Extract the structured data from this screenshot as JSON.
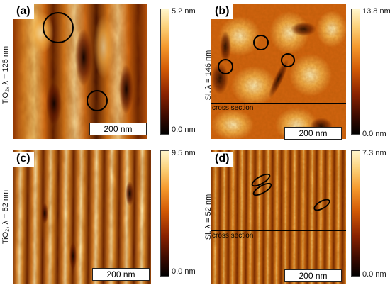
{
  "panels": [
    {
      "id": "a",
      "label": "(a)",
      "ylabel": "TiO₂, λ = 125 nm",
      "scalebar": "200 nm",
      "cbar_max": "5.2 nm",
      "cbar_min": "0.0 nm",
      "cross_section": ""
    },
    {
      "id": "b",
      "label": "(b)",
      "ylabel": "Si, λ = 146 nm",
      "scalebar": "200 nm",
      "cbar_max": "13.8 nm",
      "cbar_min": "0.0 nm",
      "cross_section": "cross section"
    },
    {
      "id": "c",
      "label": "(c)",
      "ylabel": "TiO₂, λ = 52 nm",
      "scalebar": "200 nm",
      "cbar_max": "9.5 nm",
      "cbar_min": "0.0 nm",
      "cross_section": ""
    },
    {
      "id": "d",
      "label": "(d)",
      "ylabel": "Si, λ = 52 nm",
      "scalebar": "200 nm",
      "cbar_max": "7.3 nm",
      "cbar_min": "0.0 nm",
      "cross_section": "cross section"
    }
  ],
  "colors": {
    "afm_dark": "#1a0500",
    "afm_mid": "#c84a05",
    "afm_bright": "#fff2b8",
    "annotation": "#000000"
  }
}
